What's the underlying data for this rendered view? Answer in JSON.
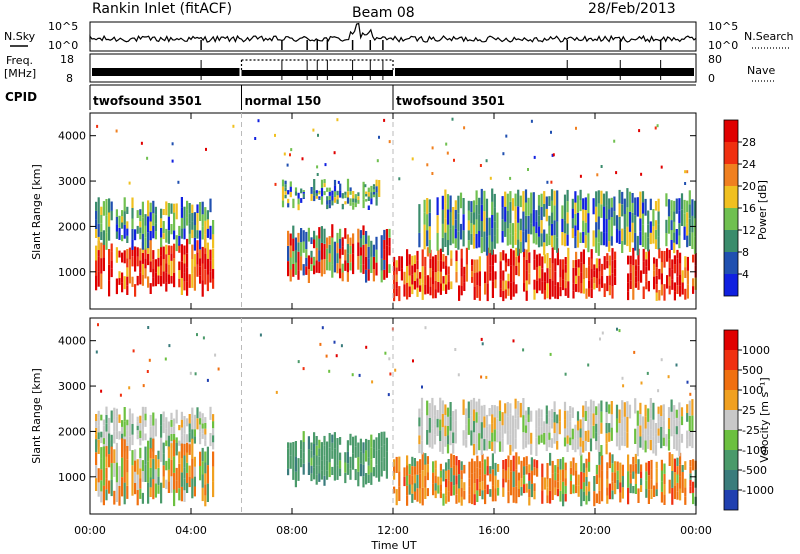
{
  "header": {
    "title": "Rankin Inlet (fitACF)",
    "beam": "Beam 08",
    "date": "28/Feb/2013"
  },
  "params_panel": {
    "nsky_label": "N.Sky",
    "nsearch_label": "N.Search",
    "freq_label_1": "Freq.",
    "freq_label_2": "[MHz]",
    "nave_label": "Nave",
    "left_ticks_top": [
      "10^5",
      "10^0"
    ],
    "right_ticks_top": [
      "10^5",
      "10^0"
    ],
    "left_ticks_freq": [
      "18",
      "8"
    ],
    "right_ticks_nave": [
      "80",
      "0"
    ]
  },
  "cpid": {
    "label": "CPID",
    "segments": [
      {
        "name": "twofsound 3501",
        "start_h": 0,
        "end_h": 6
      },
      {
        "name": "normal 150",
        "start_h": 6,
        "end_h": 12
      },
      {
        "name": "twofsound 3501",
        "start_h": 12,
        "end_h": 24
      }
    ]
  },
  "chart_data": [
    {
      "type": "heatmap",
      "panel": "power",
      "ylabel": "Slant Range [km]",
      "colorbar_label": "Power [dB]",
      "colorbar_ticks": [
        "4",
        "8",
        "12",
        "16",
        "20",
        "24",
        "28"
      ],
      "colorbar_colors": [
        "#1020e0",
        "#2050b0",
        "#3a8c6c",
        "#70c050",
        "#f0c020",
        "#f08020",
        "#f03010",
        "#e00000"
      ],
      "x_ticks": [
        "00:00",
        "04:00",
        "08:00",
        "12:00",
        "16:00",
        "20:00",
        "00:00"
      ],
      "xlim_h": [
        0,
        24
      ],
      "y_ticks": [
        "1000",
        "2000",
        "3000",
        "4000"
      ],
      "ylim": [
        180,
        4500
      ],
      "regions": [
        {
          "x0": 0.2,
          "x1": 4.9,
          "y0": 600,
          "y1": 1600,
          "value": "high"
        },
        {
          "x0": 0.2,
          "x1": 4.9,
          "y0": 1600,
          "y1": 2500,
          "value": "low"
        },
        {
          "x0": 7.8,
          "x1": 12.0,
          "y0": 900,
          "y1": 1900,
          "value": "mid"
        },
        {
          "x0": 7.6,
          "x1": 11.5,
          "y0": 2500,
          "y1": 2900,
          "value": "low"
        },
        {
          "x0": 12.0,
          "x1": 24.0,
          "y0": 500,
          "y1": 1400,
          "value": "high"
        },
        {
          "x0": 13.0,
          "x1": 24.0,
          "y0": 1500,
          "y1": 2700,
          "value": "low"
        }
      ]
    },
    {
      "type": "heatmap",
      "panel": "velocity",
      "ylabel": "Slant Range [km]",
      "colorbar_label": "Velocity [m s⁻¹]",
      "colorbar_ticks": [
        "1000",
        "500",
        "100",
        "25",
        "-25",
        "-100",
        "-500",
        "-1000"
      ],
      "colorbar_colors": [
        "#2040b0",
        "#3a7c7c",
        "#4a9a6a",
        "#6cc040",
        "#c8c8c8",
        "#f0a020",
        "#f07010",
        "#f03010",
        "#e00000"
      ],
      "x_ticks": [
        "00:00",
        "04:00",
        "08:00",
        "12:00",
        "16:00",
        "20:00",
        "00:00"
      ],
      "xlim_h": [
        0,
        24
      ],
      "xlabel": "Time UT",
      "y_ticks": [
        "1000",
        "2000",
        "3000",
        "4000"
      ],
      "ylim": [
        180,
        4500
      ],
      "regions": [
        {
          "x0": 0.2,
          "x1": 4.9,
          "y0": 1700,
          "y1": 2400,
          "value": "grey"
        },
        {
          "x0": 0.2,
          "x1": 4.9,
          "y0": 500,
          "y1": 1700,
          "value": "mixed"
        },
        {
          "x0": 7.8,
          "x1": 11.8,
          "y0": 900,
          "y1": 1900,
          "value": "green"
        },
        {
          "x0": 12.0,
          "x1": 24.0,
          "y0": 500,
          "y1": 1400,
          "value": "orange"
        },
        {
          "x0": 13.0,
          "x1": 24.0,
          "y0": 1600,
          "y1": 2600,
          "value": "grey"
        }
      ]
    }
  ]
}
